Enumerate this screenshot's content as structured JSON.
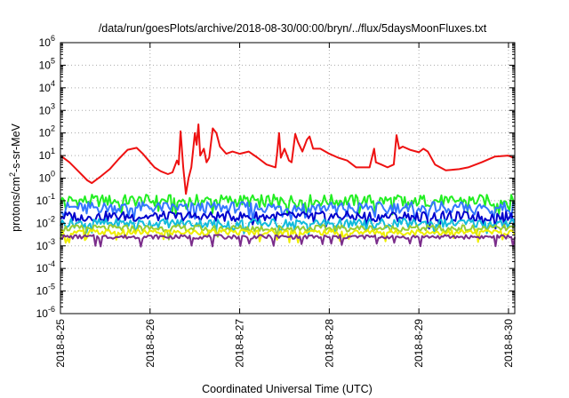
{
  "chart_data": {
    "type": "line",
    "title": "/data/run/goesPlots/archive/2018-08-30/00:00/bryn/../flux/5daysMoonFluxes.txt",
    "xlabel": "Coordinated Universal Time (UTC)",
    "ylabel": "protons/cm²-s-sr-MeV",
    "y_scale": "log",
    "ylim_exponents": [
      -6,
      6
    ],
    "y_tick_base": "10",
    "y_tick_exponents": [
      "-6",
      "-5",
      "-4",
      "-3",
      "-2",
      "-1",
      "0",
      "1",
      "2",
      "3",
      "4",
      "5",
      "6"
    ],
    "x_range_days": [
      0,
      5.07
    ],
    "x_ticks": [
      {
        "day": 0,
        "label": "2018-8-25"
      },
      {
        "day": 1,
        "label": "2018-8-26"
      },
      {
        "day": 2,
        "label": "2018-8-27"
      },
      {
        "day": 3,
        "label": "2018-8-28"
      },
      {
        "day": 4,
        "label": "2018-8-29"
      },
      {
        "day": 5,
        "label": "2018-8-30"
      }
    ],
    "grid": true,
    "legend": "none",
    "series": [
      {
        "color": "#ee1111",
        "points": [
          [
            0,
            10
          ],
          [
            0.1,
            5
          ],
          [
            0.2,
            2
          ],
          [
            0.3,
            0.8
          ],
          [
            0.35,
            0.6
          ],
          [
            0.45,
            1.2
          ],
          [
            0.55,
            2.5
          ],
          [
            0.65,
            7
          ],
          [
            0.75,
            18
          ],
          [
            0.85,
            22
          ],
          [
            0.92,
            12
          ],
          [
            1.0,
            5
          ],
          [
            1.05,
            3
          ],
          [
            1.12,
            2
          ],
          [
            1.2,
            1.5
          ],
          [
            1.25,
            1.8
          ],
          [
            1.3,
            6
          ],
          [
            1.32,
            4
          ],
          [
            1.34,
            120
          ],
          [
            1.37,
            3
          ],
          [
            1.4,
            0.2
          ],
          [
            1.43,
            1
          ],
          [
            1.46,
            3
          ],
          [
            1.5,
            100
          ],
          [
            1.52,
            30
          ],
          [
            1.54,
            240
          ],
          [
            1.56,
            10
          ],
          [
            1.6,
            20
          ],
          [
            1.63,
            5
          ],
          [
            1.66,
            8
          ],
          [
            1.7,
            160
          ],
          [
            1.74,
            100
          ],
          [
            1.78,
            25
          ],
          [
            1.85,
            12
          ],
          [
            1.92,
            15
          ],
          [
            2.0,
            12
          ],
          [
            2.1,
            15
          ],
          [
            2.2,
            8
          ],
          [
            2.3,
            4
          ],
          [
            2.4,
            3
          ],
          [
            2.42,
            15
          ],
          [
            2.44,
            100
          ],
          [
            2.46,
            8
          ],
          [
            2.5,
            20
          ],
          [
            2.55,
            6
          ],
          [
            2.58,
            5
          ],
          [
            2.62,
            90
          ],
          [
            2.65,
            40
          ],
          [
            2.7,
            15
          ],
          [
            2.75,
            50
          ],
          [
            2.78,
            70
          ],
          [
            2.82,
            20
          ],
          [
            2.9,
            20
          ],
          [
            3.0,
            12
          ],
          [
            3.1,
            8
          ],
          [
            3.2,
            6
          ],
          [
            3.3,
            3
          ],
          [
            3.45,
            3
          ],
          [
            3.5,
            20
          ],
          [
            3.52,
            5
          ],
          [
            3.58,
            4
          ],
          [
            3.65,
            3
          ],
          [
            3.72,
            4
          ],
          [
            3.75,
            80
          ],
          [
            3.78,
            20
          ],
          [
            3.82,
            25
          ],
          [
            3.9,
            18
          ],
          [
            4.0,
            14
          ],
          [
            4.05,
            20
          ],
          [
            4.1,
            15
          ],
          [
            4.18,
            4
          ],
          [
            4.3,
            2.2
          ],
          [
            4.45,
            2.5
          ],
          [
            4.55,
            3
          ],
          [
            4.7,
            5
          ],
          [
            4.85,
            9
          ],
          [
            5.0,
            10
          ],
          [
            5.05,
            8
          ]
        ]
      },
      {
        "color": "#22ee22",
        "base": 0.1,
        "spread": 0.55,
        "phase": 1
      },
      {
        "color": "#3377ff",
        "base": 0.05,
        "spread": 0.5,
        "phase": 2
      },
      {
        "color": "#0000cc",
        "base": 0.02,
        "spread": 0.45,
        "phase": 3
      },
      {
        "color": "#11bbdd",
        "base": 0.01,
        "spread": 0.4,
        "phase": 4
      },
      {
        "color": "#99cc33",
        "base": 0.006,
        "spread": 0.3,
        "phase": 5
      },
      {
        "color": "#eeee00",
        "base": 0.004,
        "spread": 0.25,
        "phase": 6
      },
      {
        "color": "#7b2d8b",
        "base": 0.0025,
        "spread": 0.18,
        "phase": 7
      }
    ]
  }
}
